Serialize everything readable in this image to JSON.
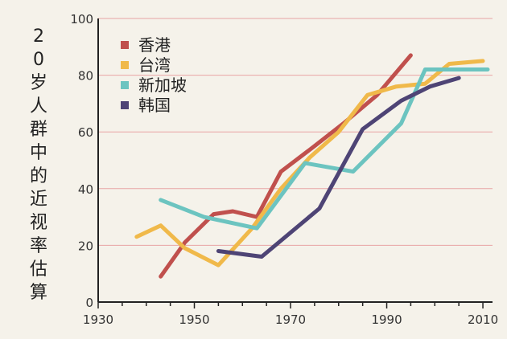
{
  "chart_data": {
    "type": "line",
    "title": "",
    "xlabel": "",
    "ylabel": "20岁人群中的近视率估算",
    "xlim": [
      1930,
      2012
    ],
    "ylim": [
      0,
      100
    ],
    "x_ticks": [
      "1930",
      "1950",
      "1970",
      "1990",
      "2010"
    ],
    "y_ticks": [
      "0",
      "20",
      "40",
      "60",
      "80",
      "100"
    ],
    "grid": true,
    "legend_position": "top-left",
    "series": [
      {
        "name": "香港",
        "color": "#c0504d",
        "points": [
          [
            1943,
            9
          ],
          [
            1948,
            21
          ],
          [
            1954,
            31
          ],
          [
            1958,
            32
          ],
          [
            1963,
            30
          ],
          [
            1968,
            46
          ],
          [
            1975,
            55
          ],
          [
            1981,
            63
          ],
          [
            1988,
            73
          ],
          [
            1995,
            87
          ]
        ]
      },
      {
        "name": "台湾",
        "color": "#f0b94a",
        "points": [
          [
            1938,
            23
          ],
          [
            1943,
            27
          ],
          [
            1948,
            19
          ],
          [
            1955,
            13
          ],
          [
            1962,
            26
          ],
          [
            1968,
            40
          ],
          [
            1974,
            51
          ],
          [
            1980,
            60
          ],
          [
            1986,
            73
          ],
          [
            1992,
            76
          ],
          [
            1998,
            77
          ],
          [
            2003,
            84
          ],
          [
            2010,
            85
          ]
        ]
      },
      {
        "name": "新加坡",
        "color": "#6cc4c0",
        "points": [
          [
            1943,
            36
          ],
          [
            1952,
            30
          ],
          [
            1963,
            26
          ],
          [
            1973,
            49
          ],
          [
            1983,
            46
          ],
          [
            1993,
            63
          ],
          [
            1998,
            82
          ],
          [
            2011,
            82
          ]
        ]
      },
      {
        "name": "韩国",
        "color": "#4e4475",
        "points": [
          [
            1955,
            18
          ],
          [
            1964,
            16
          ],
          [
            1976,
            33
          ],
          [
            1985,
            61
          ],
          [
            1993,
            71
          ],
          [
            1999,
            76
          ],
          [
            2005,
            79
          ]
        ]
      }
    ]
  }
}
